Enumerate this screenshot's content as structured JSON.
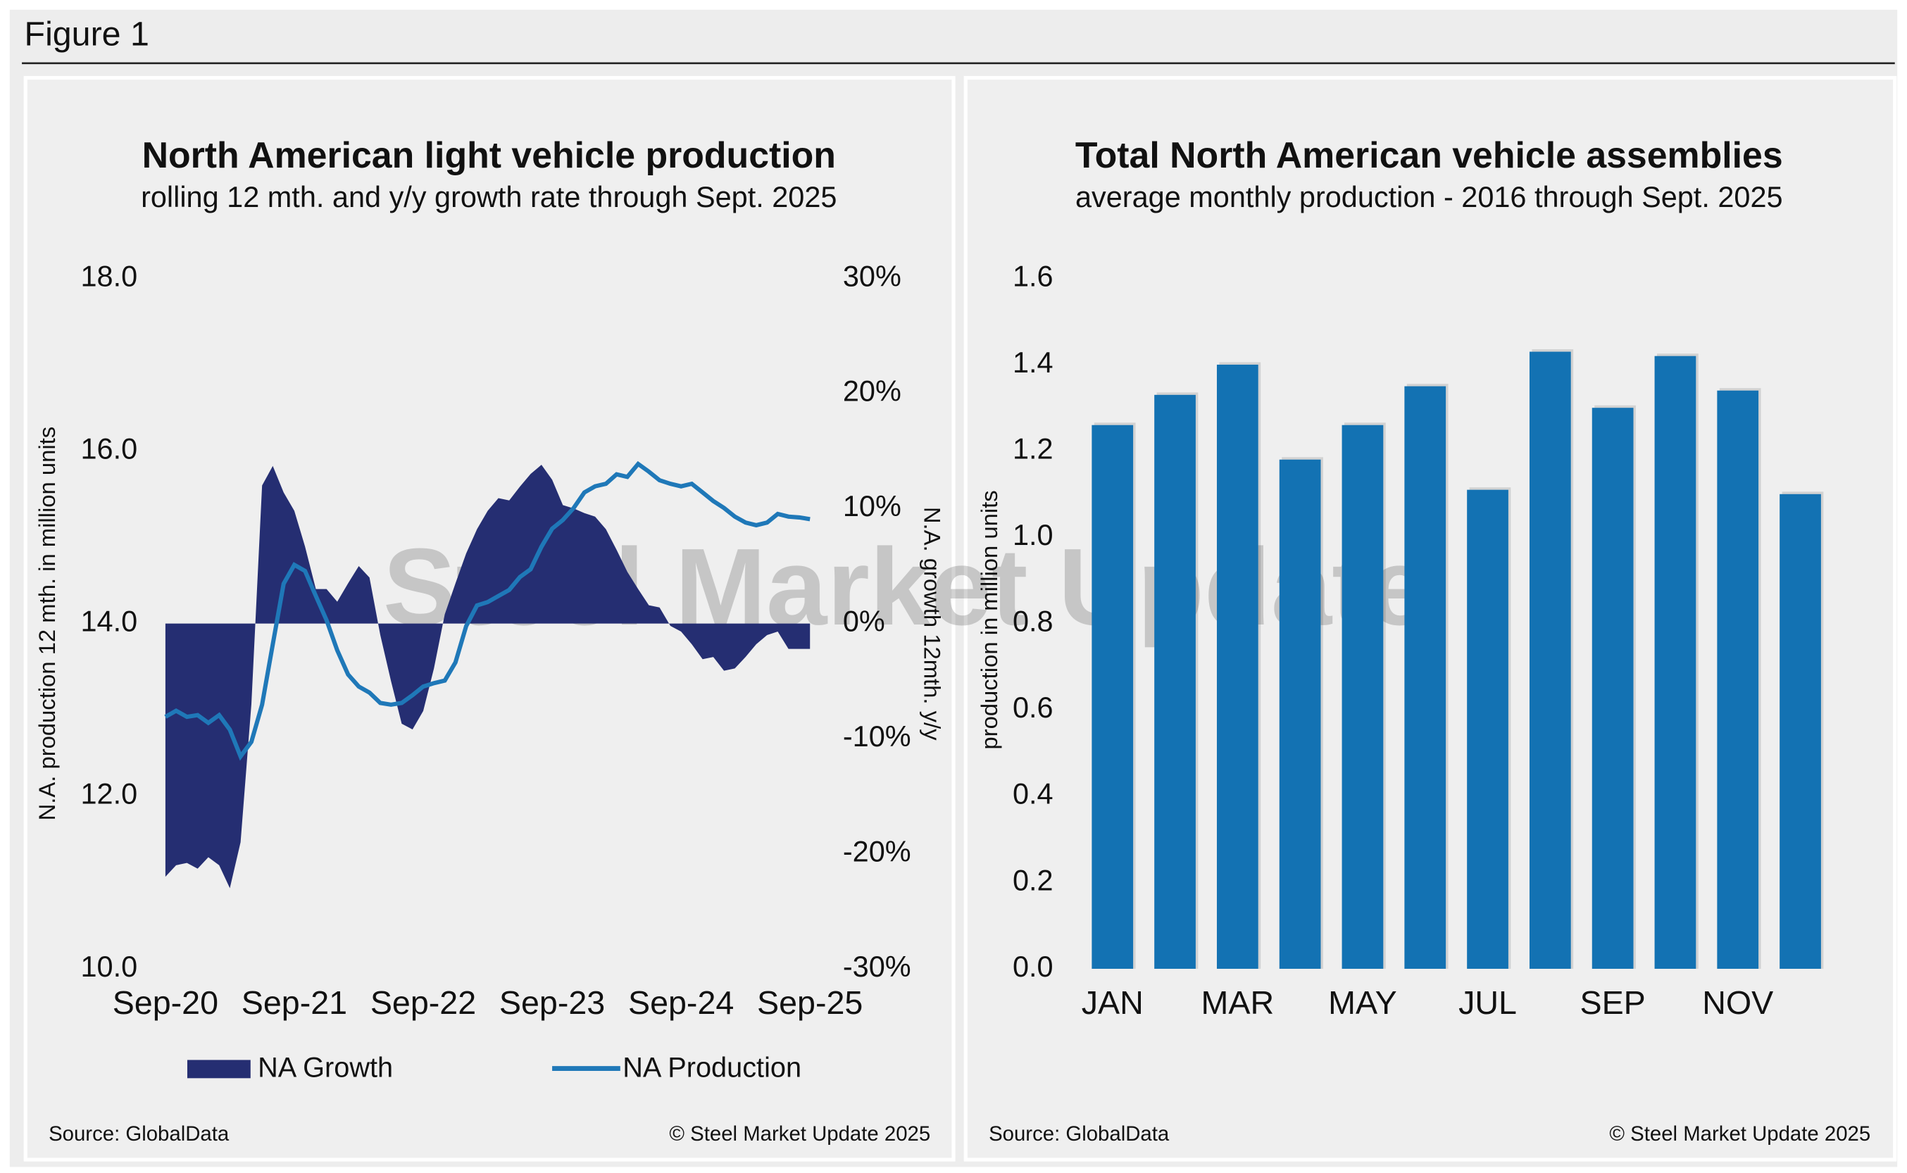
{
  "header": "Figure 1",
  "chart_data": [
    {
      "type": "combo",
      "title": "North American light vehicle production",
      "subtitle": "rolling 12 mth. and y/y growth rate through Sept. 2025",
      "ylabel": "N.A. production 12 mth. in million units",
      "y2label": "N.A. growth 12mth. y/y",
      "watermark": "Steel Market Update",
      "source": "Source: GlobalData",
      "copyright": "© Steel Market Update 2025",
      "categories": [
        "Sep-20",
        null,
        null,
        null,
        null,
        null,
        null,
        null,
        null,
        null,
        null,
        null,
        "Sep-21",
        null,
        null,
        null,
        null,
        null,
        null,
        null,
        null,
        null,
        null,
        null,
        "Sep-22",
        null,
        null,
        null,
        null,
        null,
        null,
        null,
        null,
        null,
        null,
        null,
        "Sep-23",
        null,
        null,
        null,
        null,
        null,
        null,
        null,
        null,
        null,
        null,
        null,
        "Sep-24",
        null,
        null,
        null,
        null,
        null,
        null,
        null,
        null,
        null,
        null,
        null,
        "Sep-25"
      ],
      "ylim": [
        10,
        18
      ],
      "yticks": [
        {
          "value": 10,
          "label": "10.0"
        },
        {
          "value": 12,
          "label": "12.0"
        },
        {
          "value": 14,
          "label": "14.0"
        },
        {
          "value": 16,
          "label": "16.0"
        },
        {
          "value": 18,
          "label": "18.0"
        }
      ],
      "y2lim": [
        -30,
        30
      ],
      "y2ticks": [
        {
          "value": -30,
          "label": "-30%"
        },
        {
          "value": -20,
          "label": "-20%"
        },
        {
          "value": -10,
          "label": "-10%"
        },
        {
          "value": 0,
          "label": "0%"
        },
        {
          "value": 10,
          "label": "10%"
        },
        {
          "value": 20,
          "label": "20%"
        },
        {
          "value": 30,
          "label": "30%"
        }
      ],
      "series": [
        {
          "name": "NA Growth",
          "kind": "area",
          "axis": "y2",
          "color": "#252e72",
          "values": [
            -22,
            -21,
            -20.8,
            -21.3,
            -20.3,
            -21,
            -23,
            -19,
            -7,
            12,
            13.7,
            11.4,
            9.8,
            6.7,
            3,
            3,
            1.9,
            3.5,
            5,
            4,
            -1,
            -5,
            -8.7,
            -9.2,
            -7.6,
            -3.9,
            0.8,
            3.5,
            6.1,
            8.2,
            9.8,
            10.9,
            10.7,
            11.9,
            13,
            13.8,
            12.5,
            10.3,
            10,
            9.6,
            9.3,
            8.2,
            6.4,
            4.5,
            3,
            1.6,
            1.4,
            -0.2,
            -0.7,
            -1.8,
            -3.1,
            -2.9,
            -4.1,
            -3.9,
            -2.9,
            -1.8,
            -1,
            -0.7,
            -2.2,
            -2.2,
            -2.2
          ]
        },
        {
          "name": "NA Production",
          "kind": "line",
          "axis": "y",
          "color": "#1f78b8",
          "values": [
            12.92,
            12.99,
            12.92,
            12.94,
            12.85,
            12.94,
            12.77,
            12.46,
            12.63,
            13.06,
            13.76,
            14.46,
            14.68,
            14.61,
            14.32,
            14.04,
            13.69,
            13.41,
            13.27,
            13.2,
            13.08,
            13.06,
            13.08,
            13.17,
            13.27,
            13.31,
            13.34,
            13.55,
            13.97,
            14.21,
            14.25,
            14.32,
            14.39,
            14.54,
            14.63,
            14.89,
            15.1,
            15.2,
            15.34,
            15.52,
            15.59,
            15.62,
            15.73,
            15.7,
            15.85,
            15.76,
            15.66,
            15.62,
            15.59,
            15.62,
            15.52,
            15.42,
            15.34,
            15.24,
            15.17,
            15.14,
            15.17,
            15.27,
            15.24,
            15.23,
            15.21
          ]
        }
      ]
    },
    {
      "type": "bar",
      "title": "Total North American vehicle assemblies",
      "subtitle": "average monthly production - 2016 through Sept. 2025",
      "ylabel": "production in million units",
      "source": "Source: GlobalData",
      "copyright": "© Steel Market Update 2025",
      "categories": [
        "JAN",
        null,
        "MAR",
        null,
        "MAY",
        null,
        "JUL",
        null,
        "SEP",
        null,
        "NOV",
        null
      ],
      "values": [
        1.26,
        1.33,
        1.4,
        1.18,
        1.26,
        1.35,
        1.11,
        1.43,
        1.3,
        1.42,
        1.34,
        1.1
      ],
      "color": "#1372b3",
      "ylim": [
        0,
        1.6
      ],
      "yticks": [
        {
          "value": 0,
          "label": "0.0"
        },
        {
          "value": 0.2,
          "label": "0.2"
        },
        {
          "value": 0.4,
          "label": "0.4"
        },
        {
          "value": 0.6,
          "label": "0.6"
        },
        {
          "value": 0.8,
          "label": "0.8"
        },
        {
          "value": 1,
          "label": "1.0"
        },
        {
          "value": 1.2,
          "label": "1.2"
        },
        {
          "value": 1.4,
          "label": "1.4"
        },
        {
          "value": 1.6,
          "label": "1.6"
        }
      ]
    }
  ]
}
